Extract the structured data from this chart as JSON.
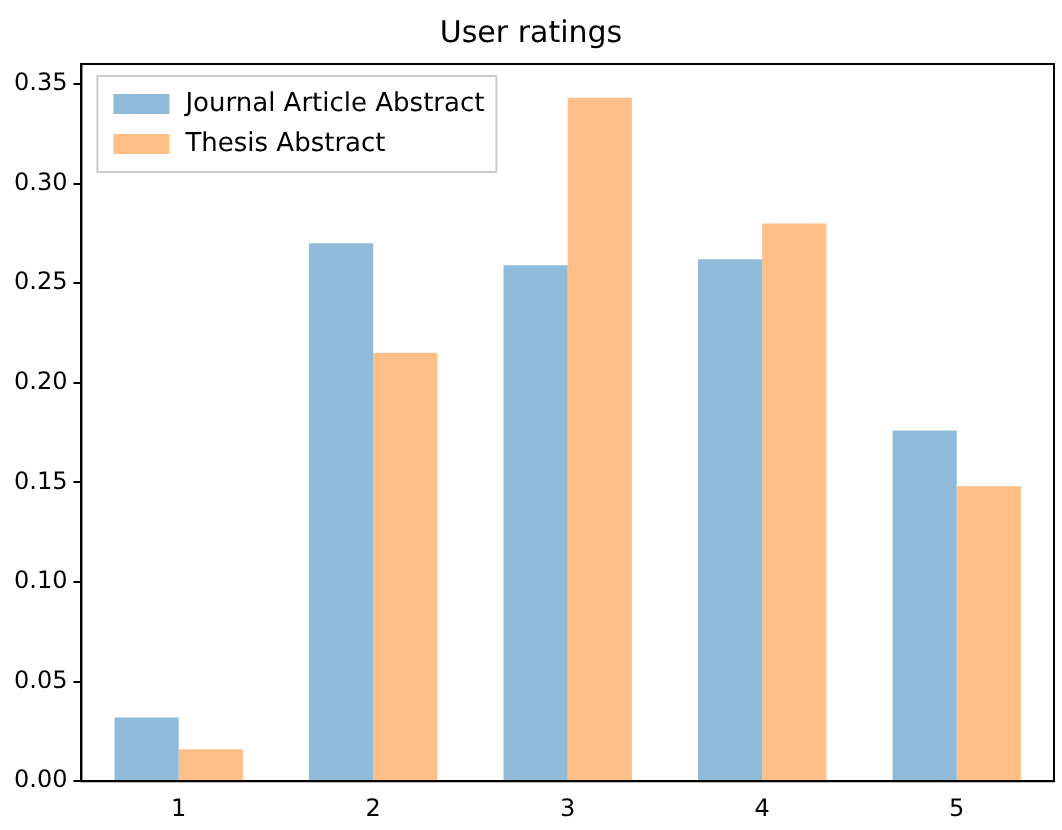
{
  "chart_data": {
    "type": "bar",
    "title": "User ratings",
    "categories": [
      "1",
      "2",
      "3",
      "4",
      "5"
    ],
    "series": [
      {
        "name": "Journal Article Abstract",
        "color": "#8fbbd9",
        "values": [
          0.032,
          0.27,
          0.259,
          0.262,
          0.176
        ]
      },
      {
        "name": "Thesis Abstract",
        "color": "#ffbf86",
        "values": [
          0.016,
          0.215,
          0.343,
          0.28,
          0.148
        ]
      }
    ],
    "ylim": [
      0,
      0.36
    ],
    "yticks": [
      {
        "value": 0,
        "label": "0.00"
      },
      0.05,
      {
        "value": 0.1,
        "label": "0.10"
      },
      0.15,
      {
        "value": 0.2,
        "label": "0.20"
      },
      0.25,
      {
        "value": 0.3,
        "label": "0.30"
      },
      0.35
    ],
    "grid": false,
    "legend": "top left"
  }
}
